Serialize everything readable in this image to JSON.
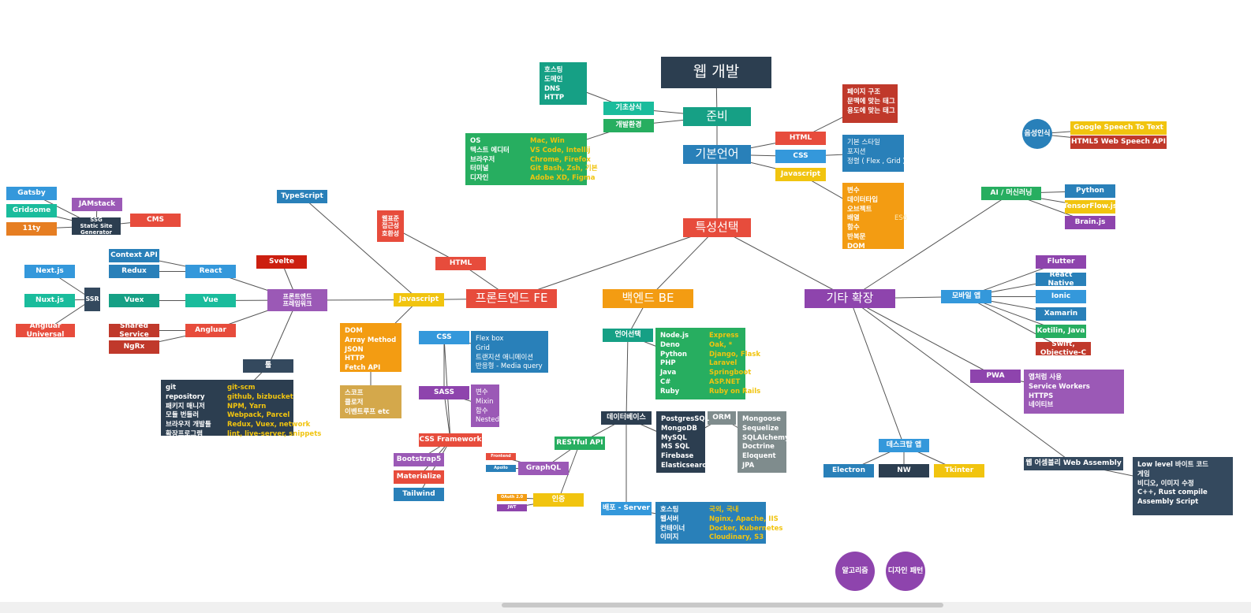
{
  "colors": {
    "navy": "#2c3e50",
    "red": "#e74c3c",
    "darkred": "#c0392b",
    "blue": "#3498db",
    "darkblue": "#2980b9",
    "green": "#27ae60",
    "teal": "#16a085",
    "turq": "#1abc9c",
    "orange": "#f39c12",
    "darkorange": "#e67e22",
    "yellow": "#f1c40f",
    "purple": "#8e44ad",
    "lpurple": "#9b59b6",
    "grey": "#7f8c8d",
    "tan": "#d4a84b",
    "slate": "#34495e",
    "crimson": "#cc1f10"
  },
  "nodes": [
    {
      "id": "web",
      "label": "웹 개발",
      "color": "navy",
      "size": "xl"
    },
    {
      "id": "prep",
      "label": "준비",
      "color": "teal",
      "size": "lg"
    },
    {
      "id": "basic",
      "label": "기초상식",
      "color": "turq"
    },
    {
      "id": "env",
      "label": "개발환경",
      "color": "green"
    },
    {
      "id": "baselang",
      "label": "기본언어",
      "color": "darkblue",
      "size": "lg"
    },
    {
      "id": "html1",
      "label": "HTML",
      "color": "red"
    },
    {
      "id": "css1",
      "label": "CSS",
      "color": "blue"
    },
    {
      "id": "js1",
      "label": "Javascript",
      "color": "yellow"
    },
    {
      "id": "special",
      "label": "특성선택",
      "color": "red",
      "size": "lg"
    },
    {
      "id": "fe",
      "label": "프론트엔드 FE",
      "color": "red",
      "size": "lg"
    },
    {
      "id": "be",
      "label": "백엔드 BE",
      "color": "orange",
      "size": "lg"
    },
    {
      "id": "ext",
      "label": "기타 확장",
      "color": "purple",
      "size": "lg"
    },
    {
      "id": "fe_html",
      "label": "HTML",
      "color": "red"
    },
    {
      "id": "web_std",
      "label": "웹표준\n접근성\n호환성",
      "color": "red"
    },
    {
      "id": "fe_js",
      "label": "Javascript",
      "color": "yellow"
    },
    {
      "id": "fe_css",
      "label": "CSS",
      "color": "blue"
    },
    {
      "id": "sass",
      "label": "SASS",
      "color": "purple"
    },
    {
      "id": "cssfw",
      "label": "CSS Framework",
      "color": "red"
    },
    {
      "id": "bootstrap",
      "label": "Bootstrap5",
      "color": "lpurple"
    },
    {
      "id": "materialize",
      "label": "Materialize",
      "color": "red"
    },
    {
      "id": "tailwind",
      "label": "Tailwind",
      "color": "darkblue"
    },
    {
      "id": "typescript",
      "label": "TypeScript",
      "color": "darkblue"
    },
    {
      "id": "fefw",
      "label": "프론트엔드\n프레임워크",
      "color": "lpurple"
    },
    {
      "id": "svelte",
      "label": "Svelte",
      "color": "crimson"
    },
    {
      "id": "react",
      "label": "React",
      "color": "blue"
    },
    {
      "id": "vue",
      "label": "Vue",
      "color": "turq"
    },
    {
      "id": "angular",
      "label": "Angluar",
      "color": "red"
    },
    {
      "id": "ctxapi",
      "label": "Context API",
      "color": "darkblue"
    },
    {
      "id": "redux",
      "label": "Redux",
      "color": "darkblue"
    },
    {
      "id": "vuex",
      "label": "Vuex",
      "color": "teal"
    },
    {
      "id": "shared",
      "label": "Shared Service",
      "color": "darkred"
    },
    {
      "id": "ngrx",
      "label": "NgRx",
      "color": "darkred"
    },
    {
      "id": "ssr",
      "label": "SSR",
      "color": "slate"
    },
    {
      "id": "nextjs",
      "label": "Next.js",
      "color": "blue"
    },
    {
      "id": "nuxtjs",
      "label": "Nuxt.js",
      "color": "turq"
    },
    {
      "id": "anguni",
      "label": "Angluar Universal",
      "color": "red"
    },
    {
      "id": "ssg",
      "label": "SSG\nStatic Site Generator",
      "color": "navy"
    },
    {
      "id": "gatsby",
      "label": "Gatsby",
      "color": "blue"
    },
    {
      "id": "gridsome",
      "label": "Gridsome",
      "color": "turq"
    },
    {
      "id": "eleventy",
      "label": "11ty",
      "color": "darkorange"
    },
    {
      "id": "jamstack",
      "label": "JAMstack",
      "color": "lpurple"
    },
    {
      "id": "cms",
      "label": "CMS",
      "color": "red"
    },
    {
      "id": "tools",
      "label": "툴",
      "color": "slate"
    },
    {
      "id": "lang_sel",
      "label": "언어선택",
      "color": "teal"
    },
    {
      "id": "db",
      "label": "데이터베이스",
      "color": "navy"
    },
    {
      "id": "orm",
      "label": "ORM",
      "color": "grey"
    },
    {
      "id": "restful",
      "label": "RESTful API",
      "color": "green"
    },
    {
      "id": "graphql",
      "label": "GraphQL",
      "color": "lpurple"
    },
    {
      "id": "frontend_tag",
      "label": "Frontend",
      "color": "red"
    },
    {
      "id": "apollo_tag",
      "label": "Apollo",
      "color": "darkblue"
    },
    {
      "id": "auth",
      "label": "인증",
      "color": "yellow"
    },
    {
      "id": "oauth_tag",
      "label": "OAuth 2.0",
      "color": "orange"
    },
    {
      "id": "jwt_tag",
      "label": "JWT",
      "color": "purple"
    },
    {
      "id": "deploy",
      "label": "배포 - Server",
      "color": "blue"
    },
    {
      "id": "ai",
      "label": "AI / 머신러닝",
      "color": "green"
    },
    {
      "id": "python",
      "label": "Python",
      "color": "darkblue"
    },
    {
      "id": "tfjs",
      "label": "TensorFlow.js",
      "color": "yellow"
    },
    {
      "id": "brainjs",
      "label": "Brain.js",
      "color": "purple"
    },
    {
      "id": "mobile",
      "label": "모바일 앱",
      "color": "blue"
    },
    {
      "id": "flutter",
      "label": "Flutter",
      "color": "purple"
    },
    {
      "id": "rn",
      "label": "React Native",
      "color": "darkblue"
    },
    {
      "id": "ionic",
      "label": "Ionic",
      "color": "blue"
    },
    {
      "id": "xamarin",
      "label": "Xamarin",
      "color": "darkblue"
    },
    {
      "id": "kotlin",
      "label": "Kotilin, Java",
      "color": "green"
    },
    {
      "id": "swift",
      "label": "Swift, Objective-C",
      "color": "darkred"
    },
    {
      "id": "pwa",
      "label": "PWA",
      "color": "purple"
    },
    {
      "id": "desktop",
      "label": "데스크탑 앱",
      "color": "blue"
    },
    {
      "id": "electron",
      "label": "Electron",
      "color": "darkblue"
    },
    {
      "id": "nw",
      "label": "NW",
      "color": "navy"
    },
    {
      "id": "tkinter",
      "label": "Tkinter",
      "color": "yellow"
    },
    {
      "id": "wasm",
      "label": "웹 어셈블리 Web Assembly",
      "color": "slate"
    },
    {
      "id": "speech",
      "label": "음성인식",
      "color": "darkblue",
      "shape": "circle"
    },
    {
      "id": "gspeech",
      "label": "Google Speech To Text",
      "color": "yellow"
    },
    {
      "id": "html5speech",
      "label": "HTML5 Web Speech API",
      "color": "darkred"
    },
    {
      "id": "algo",
      "label": "알고리즘",
      "color": "purple",
      "shape": "circle"
    },
    {
      "id": "design",
      "label": "디자인 패턴",
      "color": "purple",
      "shape": "circle"
    }
  ],
  "lists": [
    {
      "id": "l_hosting",
      "color": "teal",
      "rows": [
        {
          "k": "호스팅"
        },
        {
          "k": "도메인"
        },
        {
          "k": "DNS"
        },
        {
          "k": "HTTP"
        }
      ]
    },
    {
      "id": "l_env",
      "color": "green",
      "rows": [
        {
          "k": "OS",
          "v": "Mac, Win"
        },
        {
          "k": "텍스트 에디터",
          "v": "VS Code, Intellij"
        },
        {
          "k": "브라우저",
          "v": "Chrome, Firefox"
        },
        {
          "k": "터미널",
          "v": "Git Bash, Zsh, 기본"
        },
        {
          "k": "디자인",
          "v": "Adobe XD, Figma"
        }
      ]
    },
    {
      "id": "l_html",
      "color": "darkred",
      "rows": [
        {
          "k": "페이지 구조"
        },
        {
          "k": "문맥에 맞는 태그"
        },
        {
          "k": "용도에 맞는 태그"
        }
      ]
    },
    {
      "id": "l_css",
      "color": "darkblue",
      "norm": true,
      "rows": [
        {
          "k": "기본 스타일"
        },
        {
          "k": "포지션"
        },
        {
          "k": "정렬 ( Flex , Grid )"
        }
      ]
    },
    {
      "id": "l_js",
      "color": "orange",
      "rows": [
        {
          "k": "변수"
        },
        {
          "k": "데이터타입"
        },
        {
          "k": "오브젝트"
        },
        {
          "k": "배열",
          "v": "ES6"
        },
        {
          "k": "함수"
        },
        {
          "k": "반복문"
        },
        {
          "k": "DOM"
        }
      ]
    },
    {
      "id": "l_fejs",
      "color": "orange",
      "rows": [
        {
          "k": "DOM"
        },
        {
          "k": "Array Method"
        },
        {
          "k": "JSON"
        },
        {
          "k": "HTTP"
        },
        {
          "k": "Fetch API"
        }
      ]
    },
    {
      "id": "l_scope",
      "color": "tan",
      "rows": [
        {
          "k": "스코프"
        },
        {
          "k": "클로저"
        },
        {
          "k": "이벤트루프 etc"
        }
      ]
    },
    {
      "id": "l_fecss",
      "color": "darkblue",
      "norm": true,
      "rows": [
        {
          "k": "Flex box"
        },
        {
          "k": "Grid"
        },
        {
          "k": "트랜지션 애니메이션"
        },
        {
          "k": "반응형 - Media query"
        }
      ]
    },
    {
      "id": "l_sass",
      "color": "lpurple",
      "norm": true,
      "rows": [
        {
          "k": "변수"
        },
        {
          "k": "Mixin"
        },
        {
          "k": "함수"
        },
        {
          "k": "Nested"
        }
      ]
    },
    {
      "id": "l_tools",
      "color": "navy",
      "rows": [
        {
          "k": "git",
          "v": "git-scm"
        },
        {
          "k": "repository",
          "v": "github, bizbucket"
        },
        {
          "k": "패키지 매니저",
          "v": "NPM, Yarn"
        },
        {
          "k": "모듈 번들러",
          "v": "Webpack, Parcel"
        },
        {
          "k": "브라우저 개발툴",
          "v": "Redux, Vuex, network"
        },
        {
          "k": "확장프로그램",
          "v": "lint, live-server, snippets"
        }
      ]
    },
    {
      "id": "l_lang",
      "color": "green",
      "rows": [
        {
          "k": "Node.js",
          "v": "Express"
        },
        {
          "k": "Deno",
          "v": "Oak, *"
        },
        {
          "k": "Python",
          "v": "Django, Flask"
        },
        {
          "k": "PHP",
          "v": "Laravel"
        },
        {
          "k": "Java",
          "v": "Springboot"
        },
        {
          "k": "C#",
          "v": "ASP.NET"
        },
        {
          "k": "Ruby",
          "v": "Ruby on Rails"
        }
      ]
    },
    {
      "id": "l_db",
      "color": "navy",
      "rows": [
        {
          "k": "PostgresSQL"
        },
        {
          "k": "MongoDB"
        },
        {
          "k": "MySQL"
        },
        {
          "k": "MS SQL"
        },
        {
          "k": "Firebase"
        },
        {
          "k": "Elasticsearch"
        }
      ]
    },
    {
      "id": "l_orm",
      "color": "grey",
      "rows": [
        {
          "k": "Mongoose"
        },
        {
          "k": "Sequelize"
        },
        {
          "k": "SQLAlchemy"
        },
        {
          "k": "Doctrine"
        },
        {
          "k": "Eloquent"
        },
        {
          "k": "JPA"
        }
      ]
    },
    {
      "id": "l_deploy",
      "color": "darkblue",
      "rows": [
        {
          "k": "호스팅",
          "v": "국외, 국내"
        },
        {
          "k": "웹서버",
          "v": "Nginx, Apache, IIS"
        },
        {
          "k": "컨테이너",
          "v": "Docker, Kubernetes"
        },
        {
          "k": "이미지",
          "v": "Cloudinary, S3"
        }
      ]
    },
    {
      "id": "l_pwa",
      "color": "lpurple",
      "rows": [
        {
          "k": "앱처럼 사용"
        },
        {
          "k": "Service Workers"
        },
        {
          "k": "HTTPS"
        },
        {
          "k": "네이티브"
        }
      ]
    },
    {
      "id": "l_wasm",
      "color": "slate",
      "rows": [
        {
          "k": "Low level 바이트 코드"
        },
        {
          "k": "게임"
        },
        {
          "k": "비디오, 이미지 수정"
        },
        {
          "k": "C++, Rust compile"
        },
        {
          "k": "Assembly Script"
        }
      ]
    }
  ],
  "edges": [
    [
      "web",
      "prep"
    ],
    [
      "prep",
      "basic"
    ],
    [
      "prep",
      "env"
    ],
    [
      "basic",
      "l_hosting"
    ],
    [
      "env",
      "l_env"
    ],
    [
      "prep",
      "baselang"
    ],
    [
      "baselang",
      "html1"
    ],
    [
      "baselang",
      "css1"
    ],
    [
      "baselang",
      "js1"
    ],
    [
      "html1",
      "l_html"
    ],
    [
      "css1",
      "l_css"
    ],
    [
      "js1",
      "l_js"
    ],
    [
      "baselang",
      "special"
    ],
    [
      "special",
      "fe"
    ],
    [
      "special",
      "be"
    ],
    [
      "special",
      "ext"
    ],
    [
      "fe",
      "fe_html"
    ],
    [
      "fe_html",
      "web_std"
    ],
    [
      "fe_js",
      "fe"
    ],
    [
      "fe_js",
      "l_fejs"
    ],
    [
      "l_fejs",
      "l_scope"
    ],
    [
      "fe_css",
      "l_fecss"
    ],
    [
      "fe_css",
      "sass"
    ],
    [
      "sass",
      "l_sass"
    ],
    [
      "sass",
      "cssfw"
    ],
    [
      "cssfw",
      "bootstrap"
    ],
    [
      "cssfw",
      "materialize"
    ],
    [
      "cssfw",
      "tailwind"
    ],
    [
      "typescript",
      "fe_js"
    ],
    [
      "fefw",
      "fe_js"
    ],
    [
      "svelte",
      "fefw"
    ],
    [
      "react",
      "fefw"
    ],
    [
      "vue",
      "fefw"
    ],
    [
      "angular",
      "fefw"
    ],
    [
      "tools",
      "fefw"
    ],
    [
      "tools",
      "l_tools"
    ],
    [
      "ctxapi",
      "react"
    ],
    [
      "redux",
      "react"
    ],
    [
      "vuex",
      "vue"
    ],
    [
      "shared",
      "angular"
    ],
    [
      "ngrx",
      "angular"
    ],
    [
      "nextjs",
      "ssr"
    ],
    [
      "nuxtjs",
      "ssr"
    ],
    [
      "anguni",
      "ssr"
    ],
    [
      "gatsby",
      "ssg"
    ],
    [
      "gridsome",
      "ssg"
    ],
    [
      "eleventy",
      "ssg"
    ],
    [
      "jamstack",
      "ssg"
    ],
    [
      "ssg",
      "cms"
    ],
    [
      "be",
      "lang_sel"
    ],
    [
      "lang_sel",
      "l_lang"
    ],
    [
      "lang_sel",
      "db"
    ],
    [
      "db",
      "l_db"
    ],
    [
      "l_db",
      "orm"
    ],
    [
      "orm",
      "l_orm"
    ],
    [
      "db",
      "restful"
    ],
    [
      "restful",
      "graphql"
    ],
    [
      "restful",
      "auth"
    ],
    [
      "graphql",
      "frontend_tag"
    ],
    [
      "graphql",
      "apollo_tag"
    ],
    [
      "auth",
      "oauth_tag"
    ],
    [
      "auth",
      "jwt_tag"
    ],
    [
      "db",
      "deploy"
    ],
    [
      "deploy",
      "l_deploy"
    ],
    [
      "ext",
      "ai"
    ],
    [
      "ai",
      "python"
    ],
    [
      "ai",
      "tfjs"
    ],
    [
      "ai",
      "brainjs"
    ],
    [
      "ext",
      "mobile"
    ],
    [
      "mobile",
      "flutter"
    ],
    [
      "mobile",
      "rn"
    ],
    [
      "mobile",
      "ionic"
    ],
    [
      "mobile",
      "xamarin"
    ],
    [
      "mobile",
      "kotlin"
    ],
    [
      "mobile",
      "swift"
    ],
    [
      "ext",
      "pwa"
    ],
    [
      "pwa",
      "l_pwa"
    ],
    [
      "ext",
      "desktop"
    ],
    [
      "desktop",
      "electron"
    ],
    [
      "desktop",
      "nw"
    ],
    [
      "desktop",
      "tkinter"
    ],
    [
      "ext",
      "wasm"
    ],
    [
      "wasm",
      "l_wasm"
    ],
    [
      "speech",
      "gspeech"
    ],
    [
      "speech",
      "html5speech"
    ],
    [
      "fe_css",
      "cssfw"
    ]
  ]
}
